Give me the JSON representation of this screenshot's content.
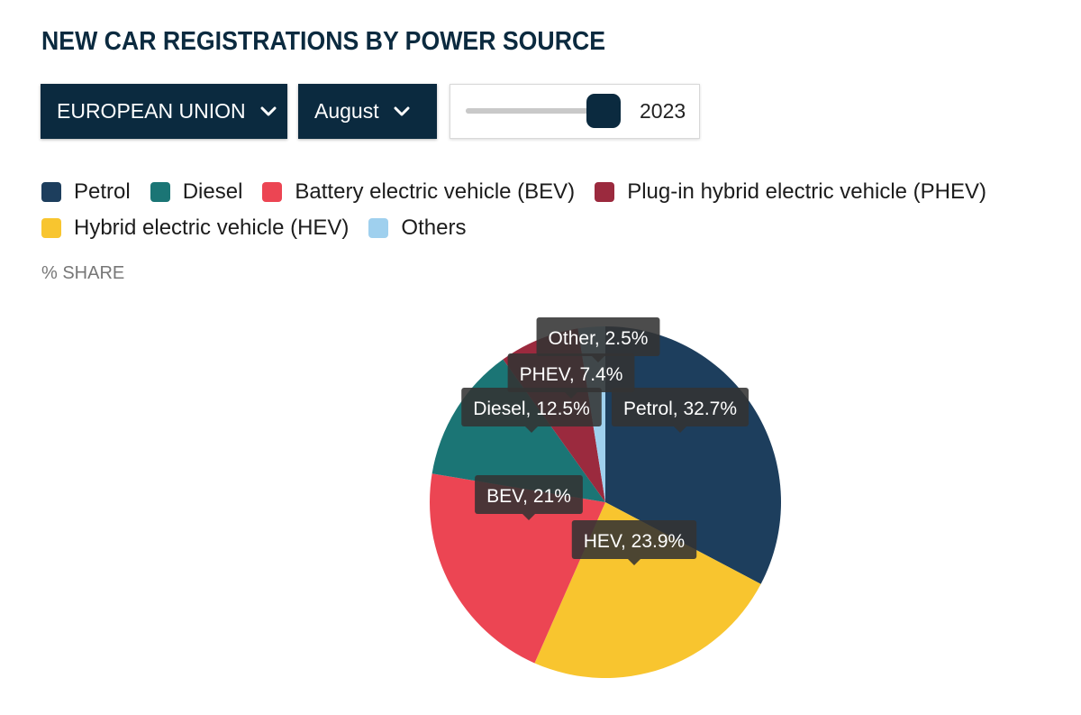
{
  "header": {
    "title": "NEW CAR REGISTRATIONS BY POWER SOURCE"
  },
  "controls": {
    "region": {
      "label": "EUROPEAN UNION",
      "icon": "chevron-down-icon"
    },
    "month": {
      "label": "August",
      "icon": "chevron-down-icon"
    },
    "year_slider": {
      "value": "2023",
      "position": 0.9
    }
  },
  "colors": {
    "dark": "#0b2a3f"
  },
  "chart_data": {
    "type": "pie",
    "ylabel": "% SHARE",
    "legend_placement": "top-left",
    "series": [
      {
        "name": "Petrol",
        "label": "Petrol, 32.7%",
        "value": 32.7,
        "color": "#1d3e5d"
      },
      {
        "name": "HEV",
        "legend": "Hybrid electric vehicle (HEV)",
        "label": "HEV, 23.9%",
        "value": 23.9,
        "color": "#f8c52f"
      },
      {
        "name": "BEV",
        "legend": "Battery electric vehicle (BEV)",
        "label": "BEV, 21%",
        "value": 21,
        "color": "#ec4553"
      },
      {
        "name": "Diesel",
        "legend": "Diesel",
        "label": "Diesel, 12.5%",
        "value": 12.5,
        "color": "#1b7575"
      },
      {
        "name": "PHEV",
        "legend": "Plug-in hybrid electric vehicle (PHEV)",
        "label": "PHEV, 7.4%",
        "value": 7.4,
        "color": "#9b2a3e"
      },
      {
        "name": "Other",
        "legend": "Others",
        "label": "Other, 2.5%",
        "value": 2.5,
        "color": "#9fd0ee"
      }
    ],
    "legend": [
      {
        "label": "Petrol",
        "color": "#1d3e5d"
      },
      {
        "label": "Diesel",
        "color": "#1b7575"
      },
      {
        "label": "Battery electric vehicle (BEV)",
        "color": "#ec4553"
      },
      {
        "label": "Plug-in hybrid electric vehicle (PHEV)",
        "color": "#9b2a3e"
      },
      {
        "label": "Hybrid electric vehicle (HEV)",
        "color": "#f8c52f"
      },
      {
        "label": "Others",
        "color": "#9fd0ee"
      }
    ]
  }
}
